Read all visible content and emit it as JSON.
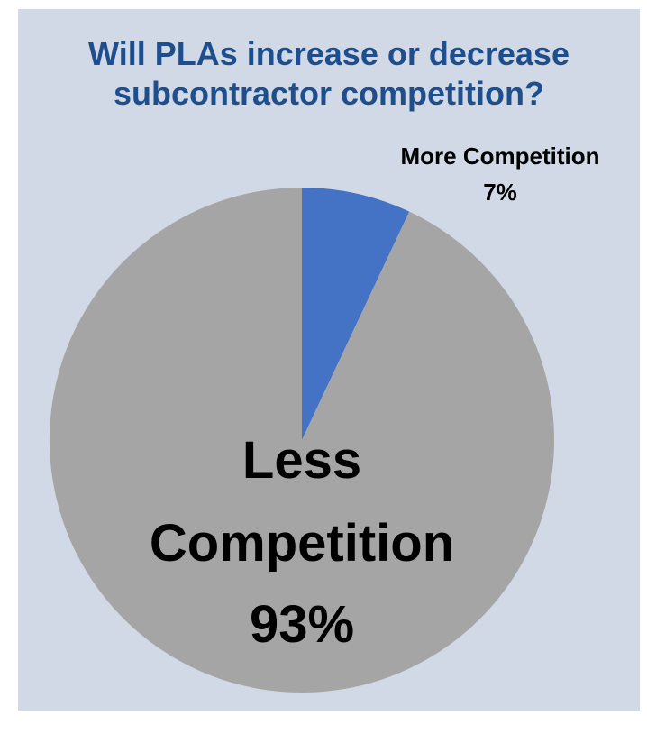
{
  "chart_data": {
    "type": "pie",
    "title": [
      "Will PLAs increase or decrease",
      "subcontractor competition?"
    ],
    "slices": [
      {
        "label": "More Competition",
        "value": 7,
        "value_label": "7%",
        "color": "#4472c4"
      },
      {
        "label": "Less Competition",
        "value": 93,
        "value_label": "93%",
        "color": "#a5a5a5"
      }
    ],
    "background_color": "#d1d9e6",
    "title_color": "#1f4e8c"
  }
}
